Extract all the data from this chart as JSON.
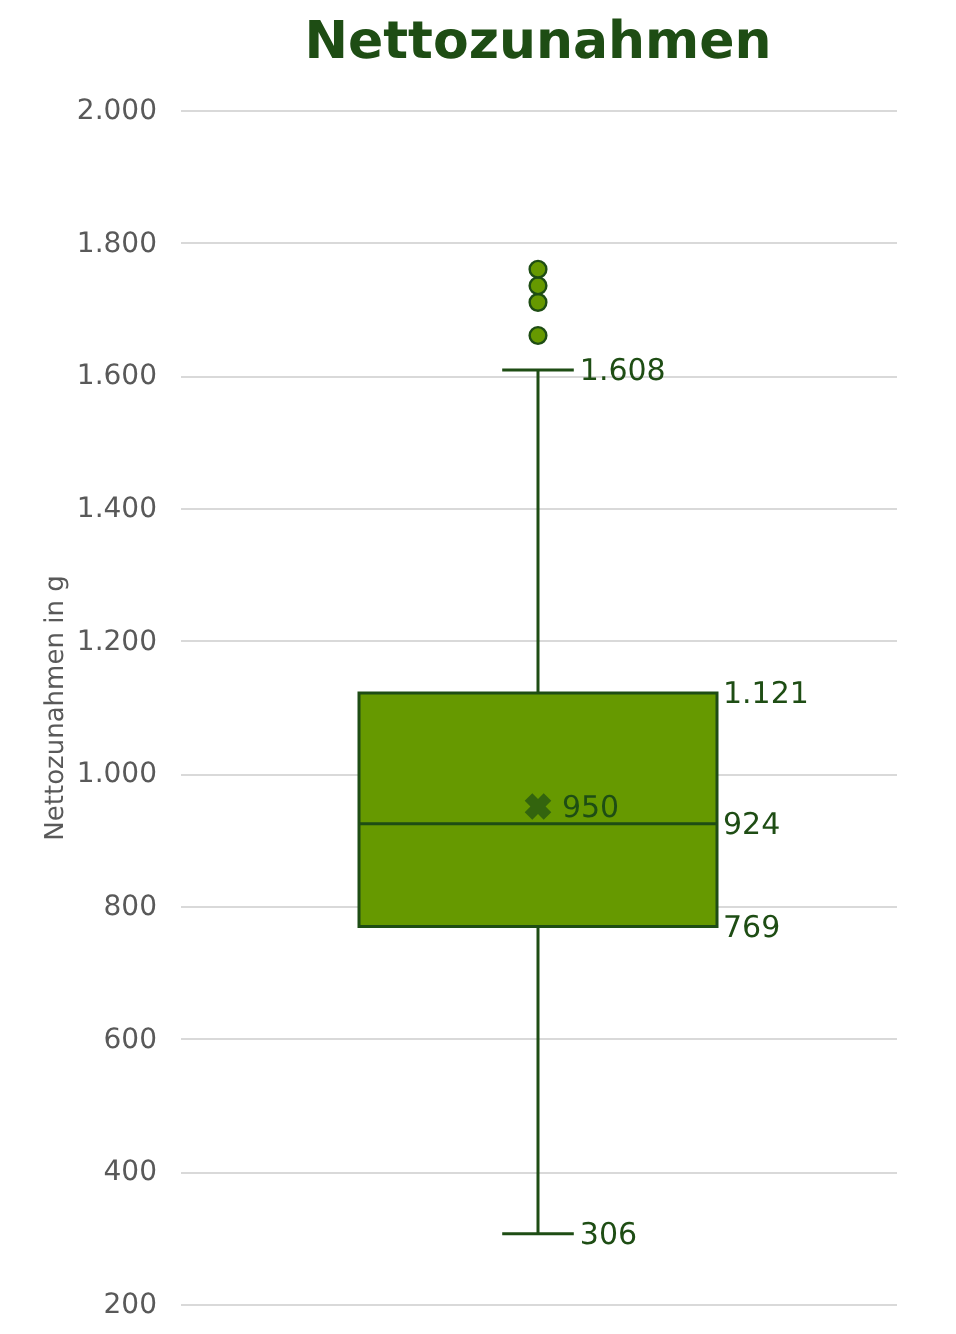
{
  "chart_data": {
    "type": "box",
    "title": "Nettozunahmen",
    "ylabel": "Nettozunahmen in g",
    "categories": [
      null
    ],
    "boxes": [
      {
        "low": 306,
        "q1": 769,
        "median": 924,
        "q3": 1121,
        "high": 1608,
        "mean": 950,
        "outliers": [
          1660,
          1710,
          1735,
          1760
        ]
      }
    ],
    "color": "#669900",
    "ylim": [
      200,
      2000
    ],
    "yticks": [
      {
        "value": 200,
        "label": "200"
      },
      {
        "value": 400,
        "label": "400"
      },
      {
        "value": 600,
        "label": "600"
      },
      {
        "value": 800,
        "label": "800"
      },
      {
        "value": 1000,
        "label": "1.000"
      },
      {
        "value": 1200,
        "label": "1.200"
      },
      {
        "value": 1400,
        "label": "1.400"
      },
      {
        "value": 1600,
        "label": "1.600"
      },
      {
        "value": 1800,
        "label": "1.800"
      },
      {
        "value": 2000,
        "label": "2.000"
      }
    ],
    "grid": "y",
    "marker": "circle",
    "annotations": [
      "1.608",
      "1.121",
      "950",
      "924",
      "769",
      "306"
    ]
  }
}
